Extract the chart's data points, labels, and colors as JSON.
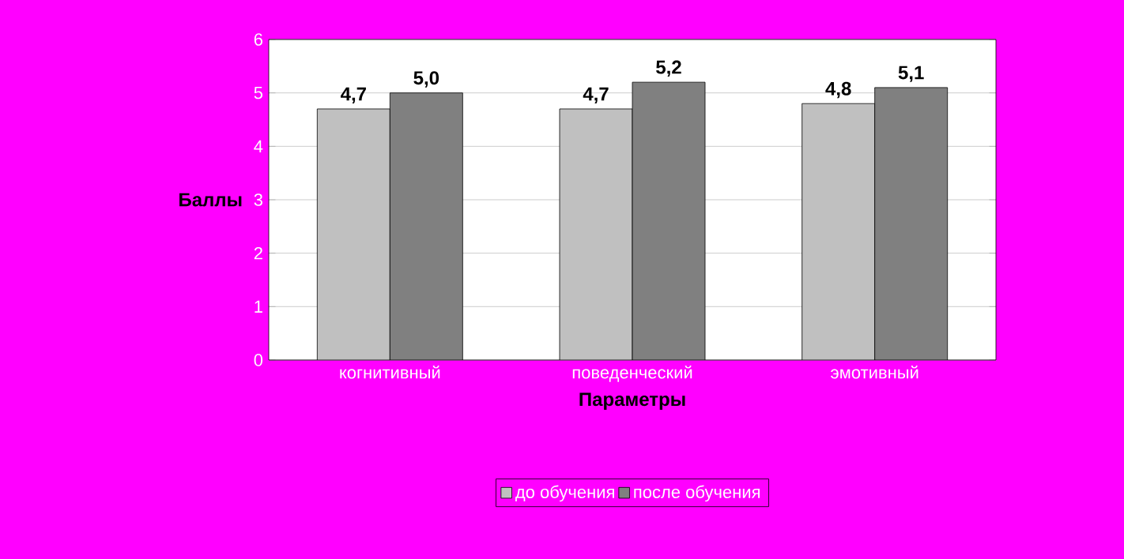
{
  "chart_data": {
    "type": "bar",
    "xlabel": "Параметры",
    "ylabel": "Баллы",
    "categories": [
      "когнитивный",
      "поведенческий",
      "эмотивный"
    ],
    "series": [
      {
        "name": "до обучения",
        "color": "#c0c0c0",
        "values": [
          4.7,
          4.7,
          4.8
        ],
        "value_labels": [
          "4,7",
          "4,7",
          "4,8"
        ]
      },
      {
        "name": "после обучения",
        "color": "#808080",
        "values": [
          5.0,
          5.2,
          5.1
        ],
        "value_labels": [
          "5,0",
          "5,2",
          "5,1"
        ]
      }
    ],
    "ylim": [
      0,
      6
    ],
    "yticks": [
      0,
      1,
      2,
      3,
      4,
      5,
      6
    ],
    "grid": "y",
    "legend": "bottom"
  }
}
